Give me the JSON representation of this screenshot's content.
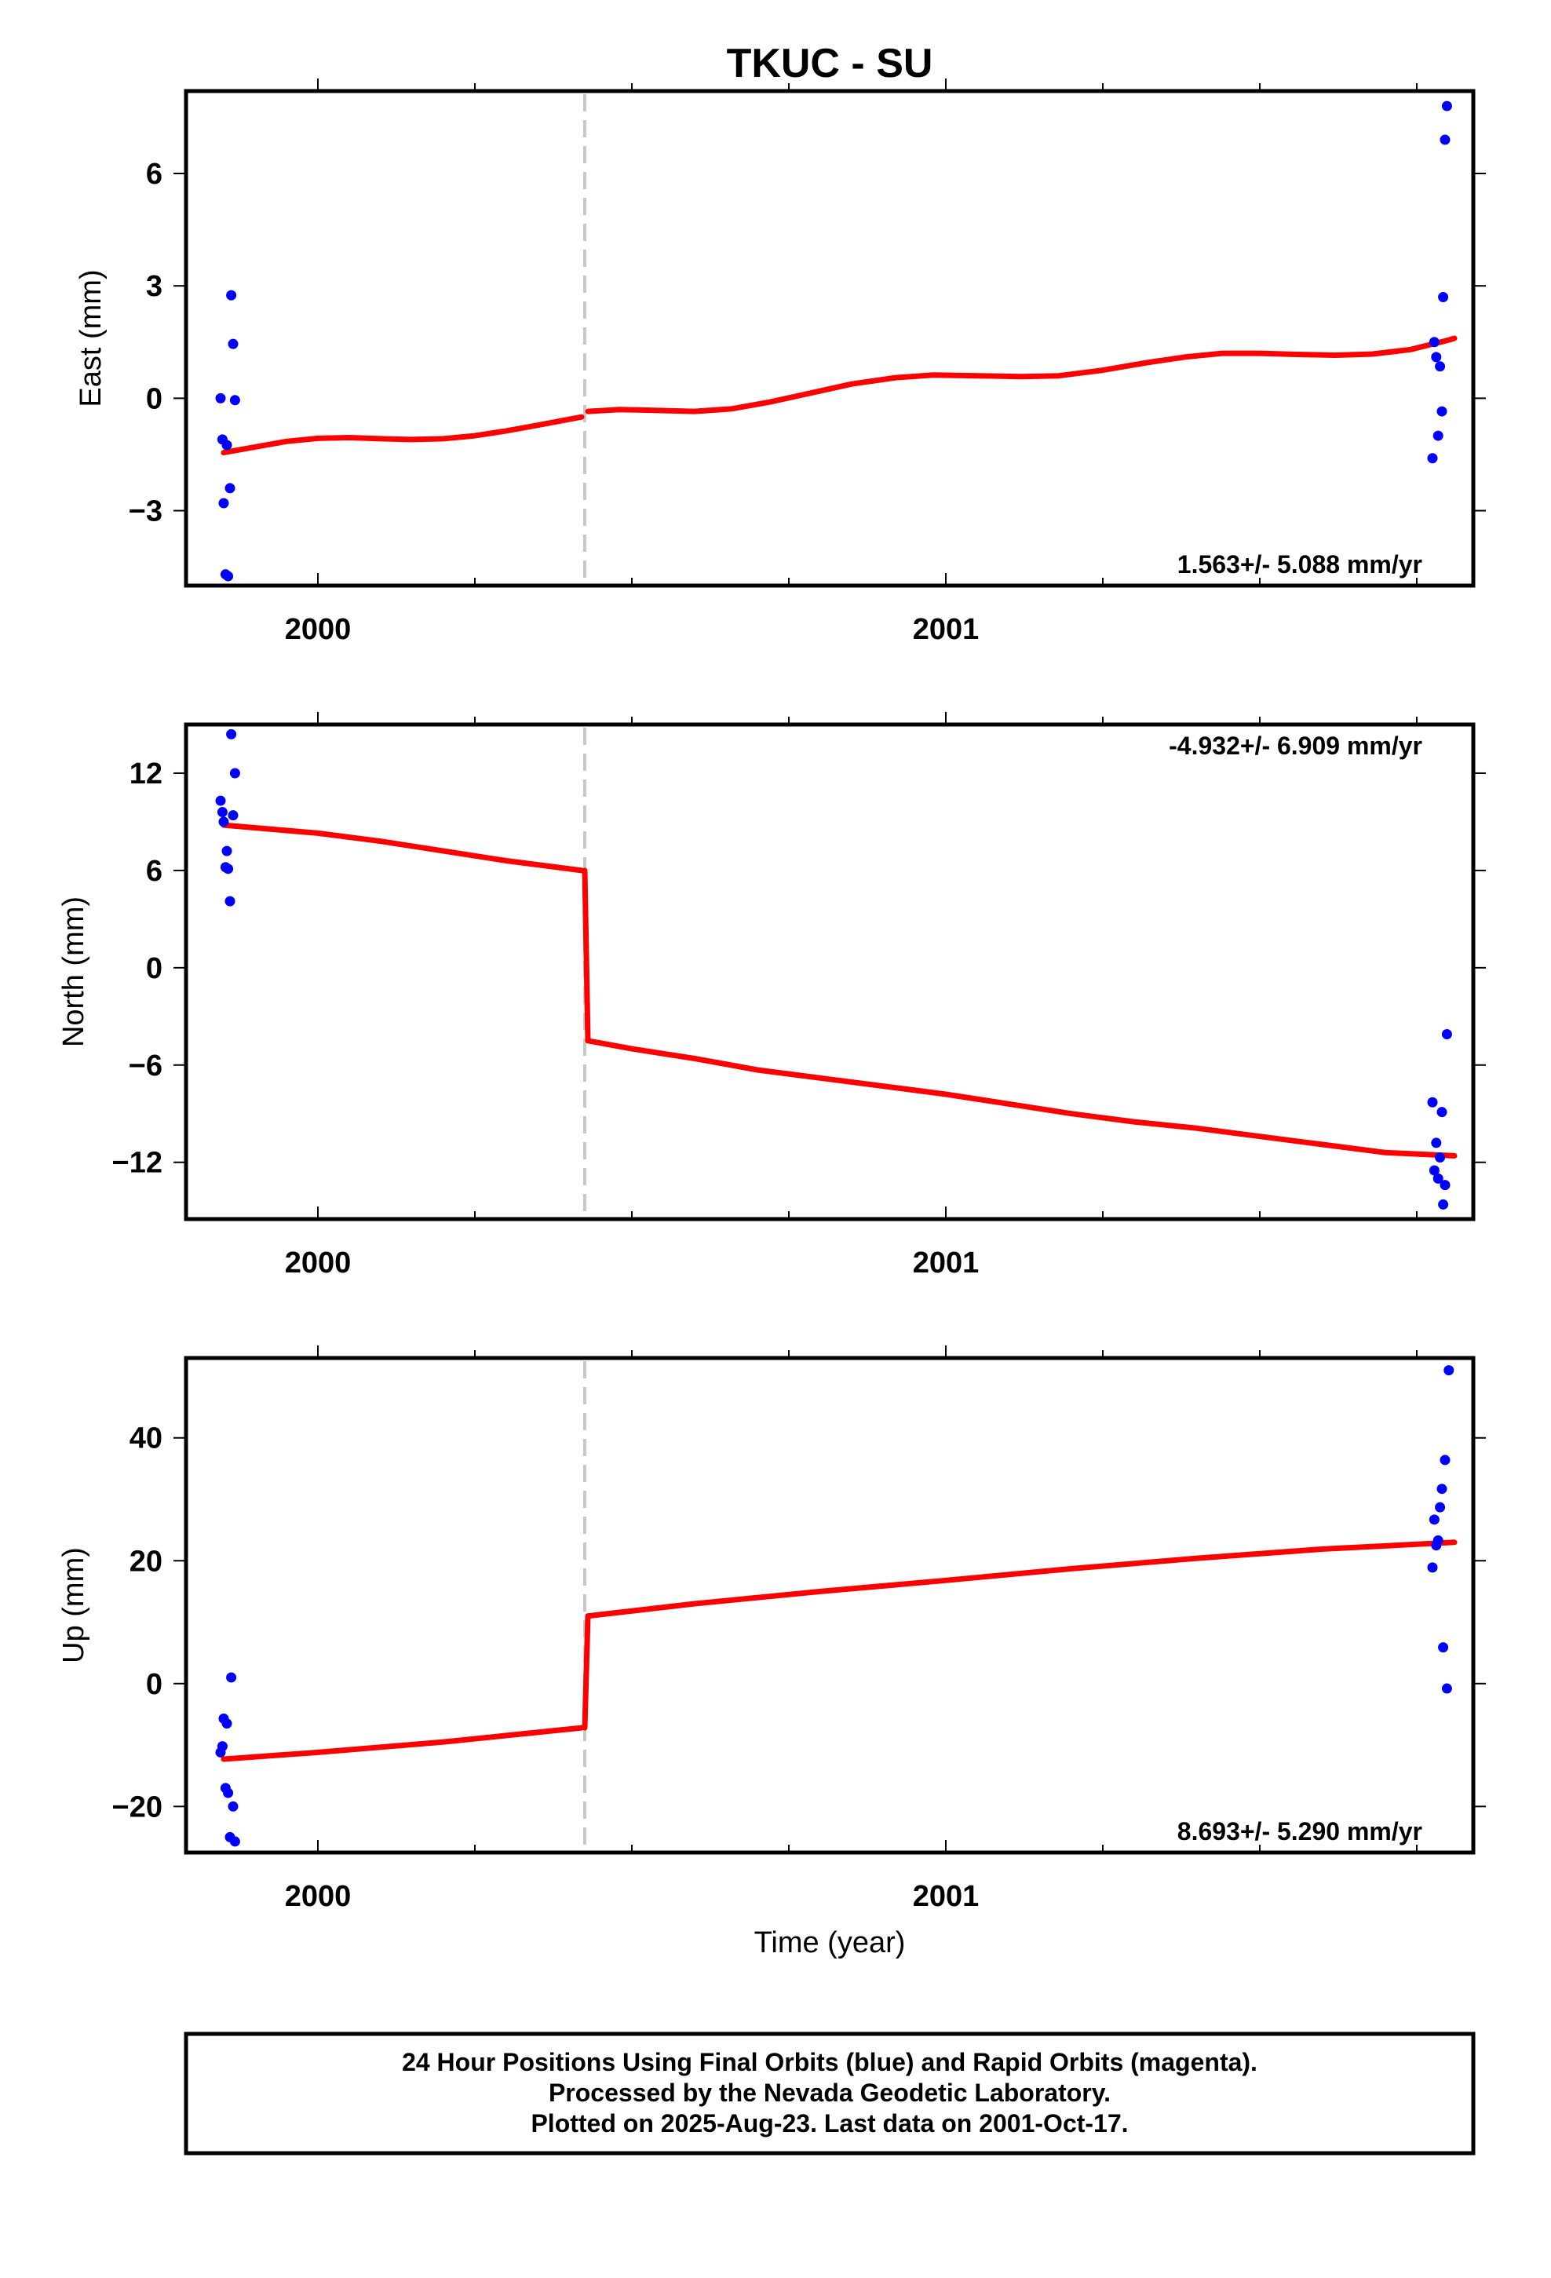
{
  "title": "TKUC - SU",
  "footer": {
    "lines": [
      "24 Hour Positions Using Final Orbits (blue) and Rapid Orbits (magenta).",
      "Processed by the Nevada Geodetic Laboratory.",
      "Plotted on 2025-Aug-23. Last data on 2001-Oct-17."
    ]
  },
  "colors": {
    "final_orbit_points": "#0000ff",
    "model_line": "#ff0000",
    "step_marker": "#c8c8c8",
    "frame": "#000000"
  },
  "chart_data": [
    {
      "type": "scatter",
      "ylabel": "East (mm)",
      "xlabel": "",
      "xlim": [
        1999.79,
        2001.84
      ],
      "ylim": [
        -5.0,
        8.2
      ],
      "x_ticks": [
        2000,
        2001
      ],
      "x_tick_labels": [
        "2000",
        "2001"
      ],
      "y_ticks": [
        -3,
        0,
        3,
        6
      ],
      "y_tick_labels": [
        "−3",
        "0",
        "3",
        "6"
      ],
      "rate_text": "1.563+/- 5.088 mm/yr",
      "rate_position": "bottom-right",
      "step_x": 2000.425,
      "grid": false,
      "series": [
        {
          "kind": "points",
          "color": "#0000ff",
          "points": [
            [
              1999.845,
              0.0
            ],
            [
              1999.848,
              -1.1
            ],
            [
              1999.85,
              -2.8
            ],
            [
              1999.853,
              -4.7
            ],
            [
              1999.855,
              -1.25
            ],
            [
              1999.857,
              -4.75
            ],
            [
              1999.86,
              -2.4
            ],
            [
              1999.862,
              2.75
            ],
            [
              1999.865,
              1.45
            ],
            [
              1999.868,
              -0.05
            ],
            [
              2001.775,
              -1.6
            ],
            [
              2001.778,
              1.5
            ],
            [
              2001.781,
              1.1
            ],
            [
              2001.784,
              -1.0
            ],
            [
              2001.787,
              0.85
            ],
            [
              2001.79,
              -0.35
            ],
            [
              2001.792,
              2.7
            ],
            [
              2001.795,
              6.9
            ],
            [
              2001.798,
              7.8
            ]
          ]
        },
        {
          "kind": "line",
          "color": "#ff0000",
          "segments": [
            [
              [
                1999.85,
                -1.45
              ],
              [
                1999.9,
                -1.3
              ],
              [
                1999.95,
                -1.15
              ],
              [
                2000.0,
                -1.07
              ],
              [
                2000.05,
                -1.05
              ],
              [
                2000.1,
                -1.08
              ],
              [
                2000.15,
                -1.1
              ],
              [
                2000.2,
                -1.08
              ],
              [
                2000.25,
                -1.0
              ],
              [
                2000.3,
                -0.87
              ],
              [
                2000.35,
                -0.72
              ],
              [
                2000.42,
                -0.5
              ]
            ],
            [
              [
                2000.43,
                -0.35
              ],
              [
                2000.48,
                -0.3
              ],
              [
                2000.53,
                -0.32
              ],
              [
                2000.6,
                -0.35
              ],
              [
                2000.66,
                -0.28
              ],
              [
                2000.72,
                -0.1
              ],
              [
                2000.78,
                0.12
              ],
              [
                2000.85,
                0.38
              ],
              [
                2000.92,
                0.55
              ],
              [
                2000.98,
                0.62
              ],
              [
                2001.05,
                0.6
              ],
              [
                2001.12,
                0.58
              ],
              [
                2001.18,
                0.6
              ],
              [
                2001.25,
                0.75
              ],
              [
                2001.32,
                0.95
              ],
              [
                2001.38,
                1.1
              ],
              [
                2001.44,
                1.2
              ],
              [
                2001.5,
                1.2
              ],
              [
                2001.56,
                1.17
              ],
              [
                2001.62,
                1.15
              ],
              [
                2001.68,
                1.18
              ],
              [
                2001.74,
                1.3
              ],
              [
                2001.8,
                1.55
              ],
              [
                2001.81,
                1.6
              ]
            ]
          ]
        }
      ]
    },
    {
      "type": "scatter",
      "ylabel": "North (mm)",
      "xlabel": "",
      "xlim": [
        1999.79,
        2001.84
      ],
      "ylim": [
        -15.5,
        15.0
      ],
      "x_ticks": [
        2000,
        2001
      ],
      "x_tick_labels": [
        "2000",
        "2001"
      ],
      "y_ticks": [
        -12,
        -6,
        0,
        6,
        12
      ],
      "y_tick_labels": [
        "−12",
        "−6",
        "0",
        "6",
        "12"
      ],
      "rate_text": "-4.932+/- 6.909 mm/yr",
      "rate_position": "top-right",
      "step_x": 2000.425,
      "grid": false,
      "series": [
        {
          "kind": "points",
          "color": "#0000ff",
          "points": [
            [
              1999.845,
              10.3
            ],
            [
              1999.848,
              9.6
            ],
            [
              1999.85,
              9.0
            ],
            [
              1999.853,
              6.2
            ],
            [
              1999.855,
              7.2
            ],
            [
              1999.857,
              6.1
            ],
            [
              1999.86,
              4.1
            ],
            [
              1999.862,
              14.4
            ],
            [
              1999.865,
              9.4
            ],
            [
              1999.868,
              12.0
            ],
            [
              2001.775,
              -8.3
            ],
            [
              2001.778,
              -12.5
            ],
            [
              2001.781,
              -10.8
            ],
            [
              2001.784,
              -13.0
            ],
            [
              2001.787,
              -11.7
            ],
            [
              2001.79,
              -8.9
            ],
            [
              2001.792,
              -14.6
            ],
            [
              2001.795,
              -13.4
            ],
            [
              2001.798,
              -4.1
            ]
          ]
        },
        {
          "kind": "line",
          "color": "#ff0000",
          "segments": [
            [
              [
                1999.85,
                8.8
              ],
              [
                2000.0,
                8.3
              ],
              [
                2000.1,
                7.8
              ],
              [
                2000.2,
                7.2
              ],
              [
                2000.3,
                6.6
              ],
              [
                2000.42,
                6.0
              ]
            ],
            [
              [
                2000.425,
                6.0
              ],
              [
                2000.43,
                -4.5
              ]
            ],
            [
              [
                2000.43,
                -4.5
              ],
              [
                2000.5,
                -5.0
              ],
              [
                2000.6,
                -5.6
              ],
              [
                2000.7,
                -6.3
              ],
              [
                2000.8,
                -6.8
              ],
              [
                2000.9,
                -7.3
              ],
              [
                2001.0,
                -7.8
              ],
              [
                2001.1,
                -8.4
              ],
              [
                2001.2,
                -9.0
              ],
              [
                2001.3,
                -9.5
              ],
              [
                2001.4,
                -9.9
              ],
              [
                2001.5,
                -10.4
              ],
              [
                2001.6,
                -10.9
              ],
              [
                2001.7,
                -11.4
              ],
              [
                2001.81,
                -11.6
              ]
            ]
          ]
        }
      ]
    },
    {
      "type": "scatter",
      "ylabel": "Up (mm)",
      "xlabel": "Time (year)",
      "xlim": [
        1999.79,
        2001.84
      ],
      "ylim": [
        -27.5,
        53.0
      ],
      "x_ticks": [
        2000,
        2001
      ],
      "x_tick_labels": [
        "2000",
        "2001"
      ],
      "y_ticks": [
        -20,
        0,
        20,
        40
      ],
      "y_tick_labels": [
        "−20",
        "0",
        "20",
        "40"
      ],
      "rate_text": "8.693+/- 5.290 mm/yr",
      "rate_position": "bottom-right",
      "step_x": 2000.425,
      "grid": false,
      "series": [
        {
          "kind": "points",
          "color": "#0000ff",
          "points": [
            [
              1999.845,
              -11.2
            ],
            [
              1999.848,
              -10.2
            ],
            [
              1999.85,
              -5.7
            ],
            [
              1999.853,
              -17.0
            ],
            [
              1999.855,
              -6.5
            ],
            [
              1999.857,
              -17.8
            ],
            [
              1999.86,
              -25.0
            ],
            [
              1999.862,
              1.0
            ],
            [
              1999.865,
              -20.0
            ],
            [
              1999.868,
              -25.7
            ],
            [
              2001.775,
              18.9
            ],
            [
              2001.778,
              26.7
            ],
            [
              2001.781,
              22.5
            ],
            [
              2001.784,
              23.3
            ],
            [
              2001.787,
              28.7
            ],
            [
              2001.79,
              31.7
            ],
            [
              2001.792,
              5.9
            ],
            [
              2001.795,
              36.4
            ],
            [
              2001.798,
              -0.8
            ],
            [
              2001.801,
              51.0
            ]
          ]
        },
        {
          "kind": "line",
          "color": "#ff0000",
          "segments": [
            [
              [
                1999.85,
                -12.3
              ],
              [
                2000.0,
                -11.2
              ],
              [
                2000.2,
                -9.5
              ],
              [
                2000.42,
                -7.2
              ]
            ],
            [
              [
                2000.425,
                -7.2
              ],
              [
                2000.43,
                11.0
              ]
            ],
            [
              [
                2000.43,
                11.0
              ],
              [
                2000.6,
                13.0
              ],
              [
                2000.8,
                15.0
              ],
              [
                2001.0,
                16.8
              ],
              [
                2001.2,
                18.7
              ],
              [
                2001.4,
                20.4
              ],
              [
                2001.6,
                21.9
              ],
              [
                2001.81,
                23.0
              ]
            ]
          ]
        }
      ]
    }
  ]
}
